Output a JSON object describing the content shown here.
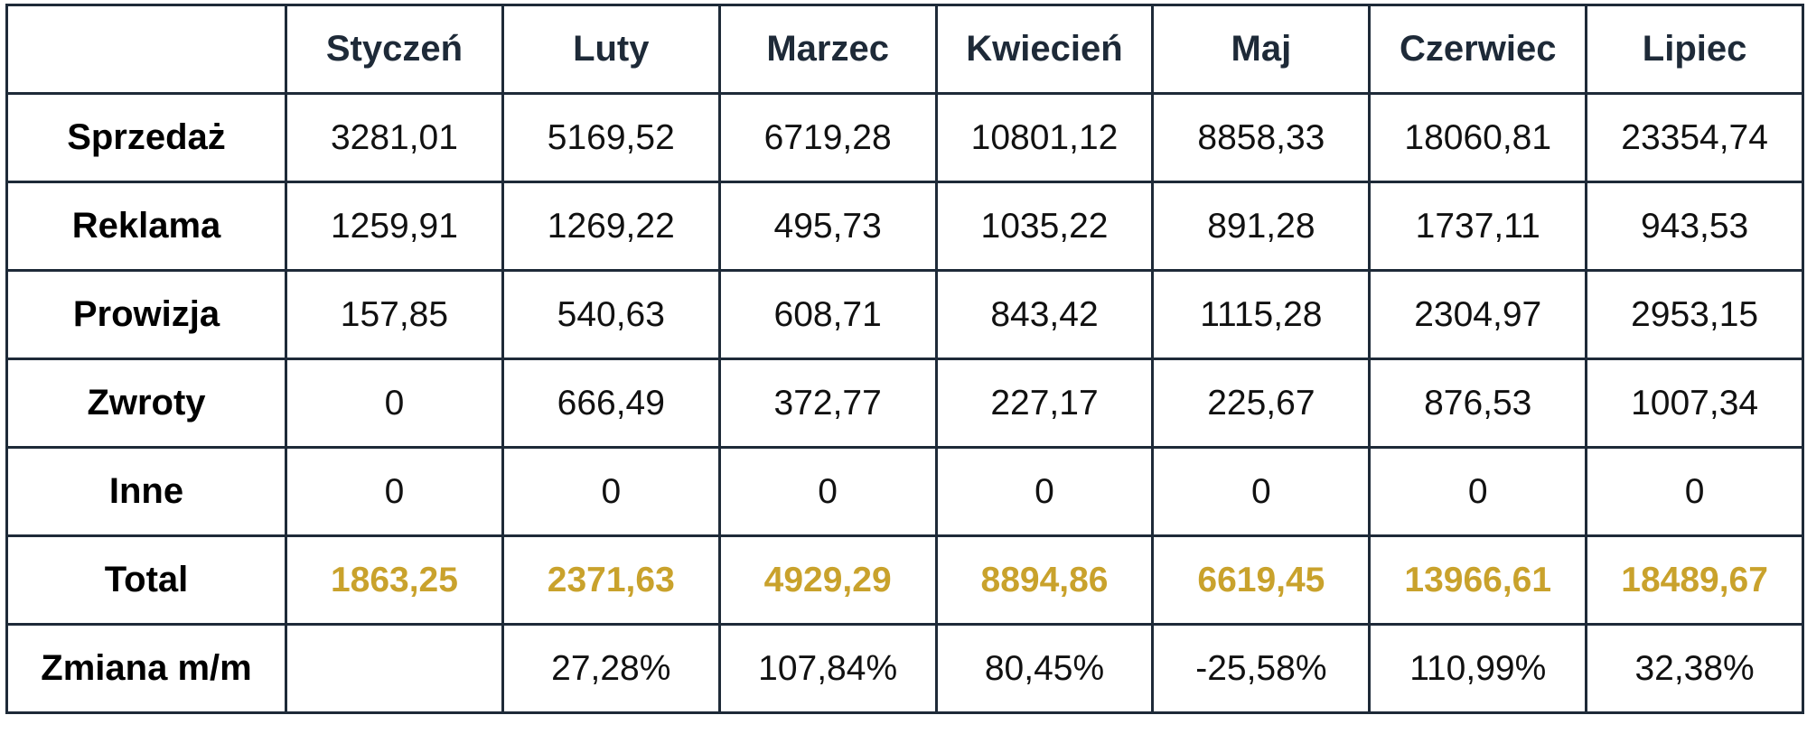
{
  "table": {
    "corner": "",
    "months": [
      "Styczeń",
      "Luty",
      "Marzec",
      "Kwiecień",
      "Maj",
      "Czerwiec",
      "Lipiec"
    ],
    "rows": [
      {
        "label": "Sprzedaż",
        "values": [
          "3281,01",
          "5169,52",
          "6719,28",
          "10801,12",
          "8858,33",
          "18060,81",
          "23354,74"
        ]
      },
      {
        "label": "Reklama",
        "values": [
          "1259,91",
          "1269,22",
          "495,73",
          "1035,22",
          "891,28",
          "1737,11",
          "943,53"
        ]
      },
      {
        "label": "Prowizja",
        "values": [
          "157,85",
          "540,63",
          "608,71",
          "843,42",
          "1115,28",
          "2304,97",
          "2953,15"
        ]
      },
      {
        "label": "Zwroty",
        "values": [
          "0",
          "666,49",
          "372,77",
          "227,17",
          "225,67",
          "876,53",
          "1007,34"
        ]
      },
      {
        "label": "Inne",
        "values": [
          "0",
          "0",
          "0",
          "0",
          "0",
          "0",
          "0"
        ]
      },
      {
        "label": "Total",
        "values": [
          "1863,25",
          "2371,63",
          "4929,29",
          "8894,86",
          "6619,45",
          "13966,61",
          "18489,67"
        ]
      },
      {
        "label": "Zmiana m/m",
        "values": [
          "",
          "27,28%",
          "107,84%",
          "80,45%",
          "-25,58%",
          "110,99%",
          "32,38%"
        ]
      }
    ]
  },
  "colors": {
    "border": "#1e2a38",
    "header_text": "#1e2a38",
    "total_text": "#c9a22c"
  }
}
